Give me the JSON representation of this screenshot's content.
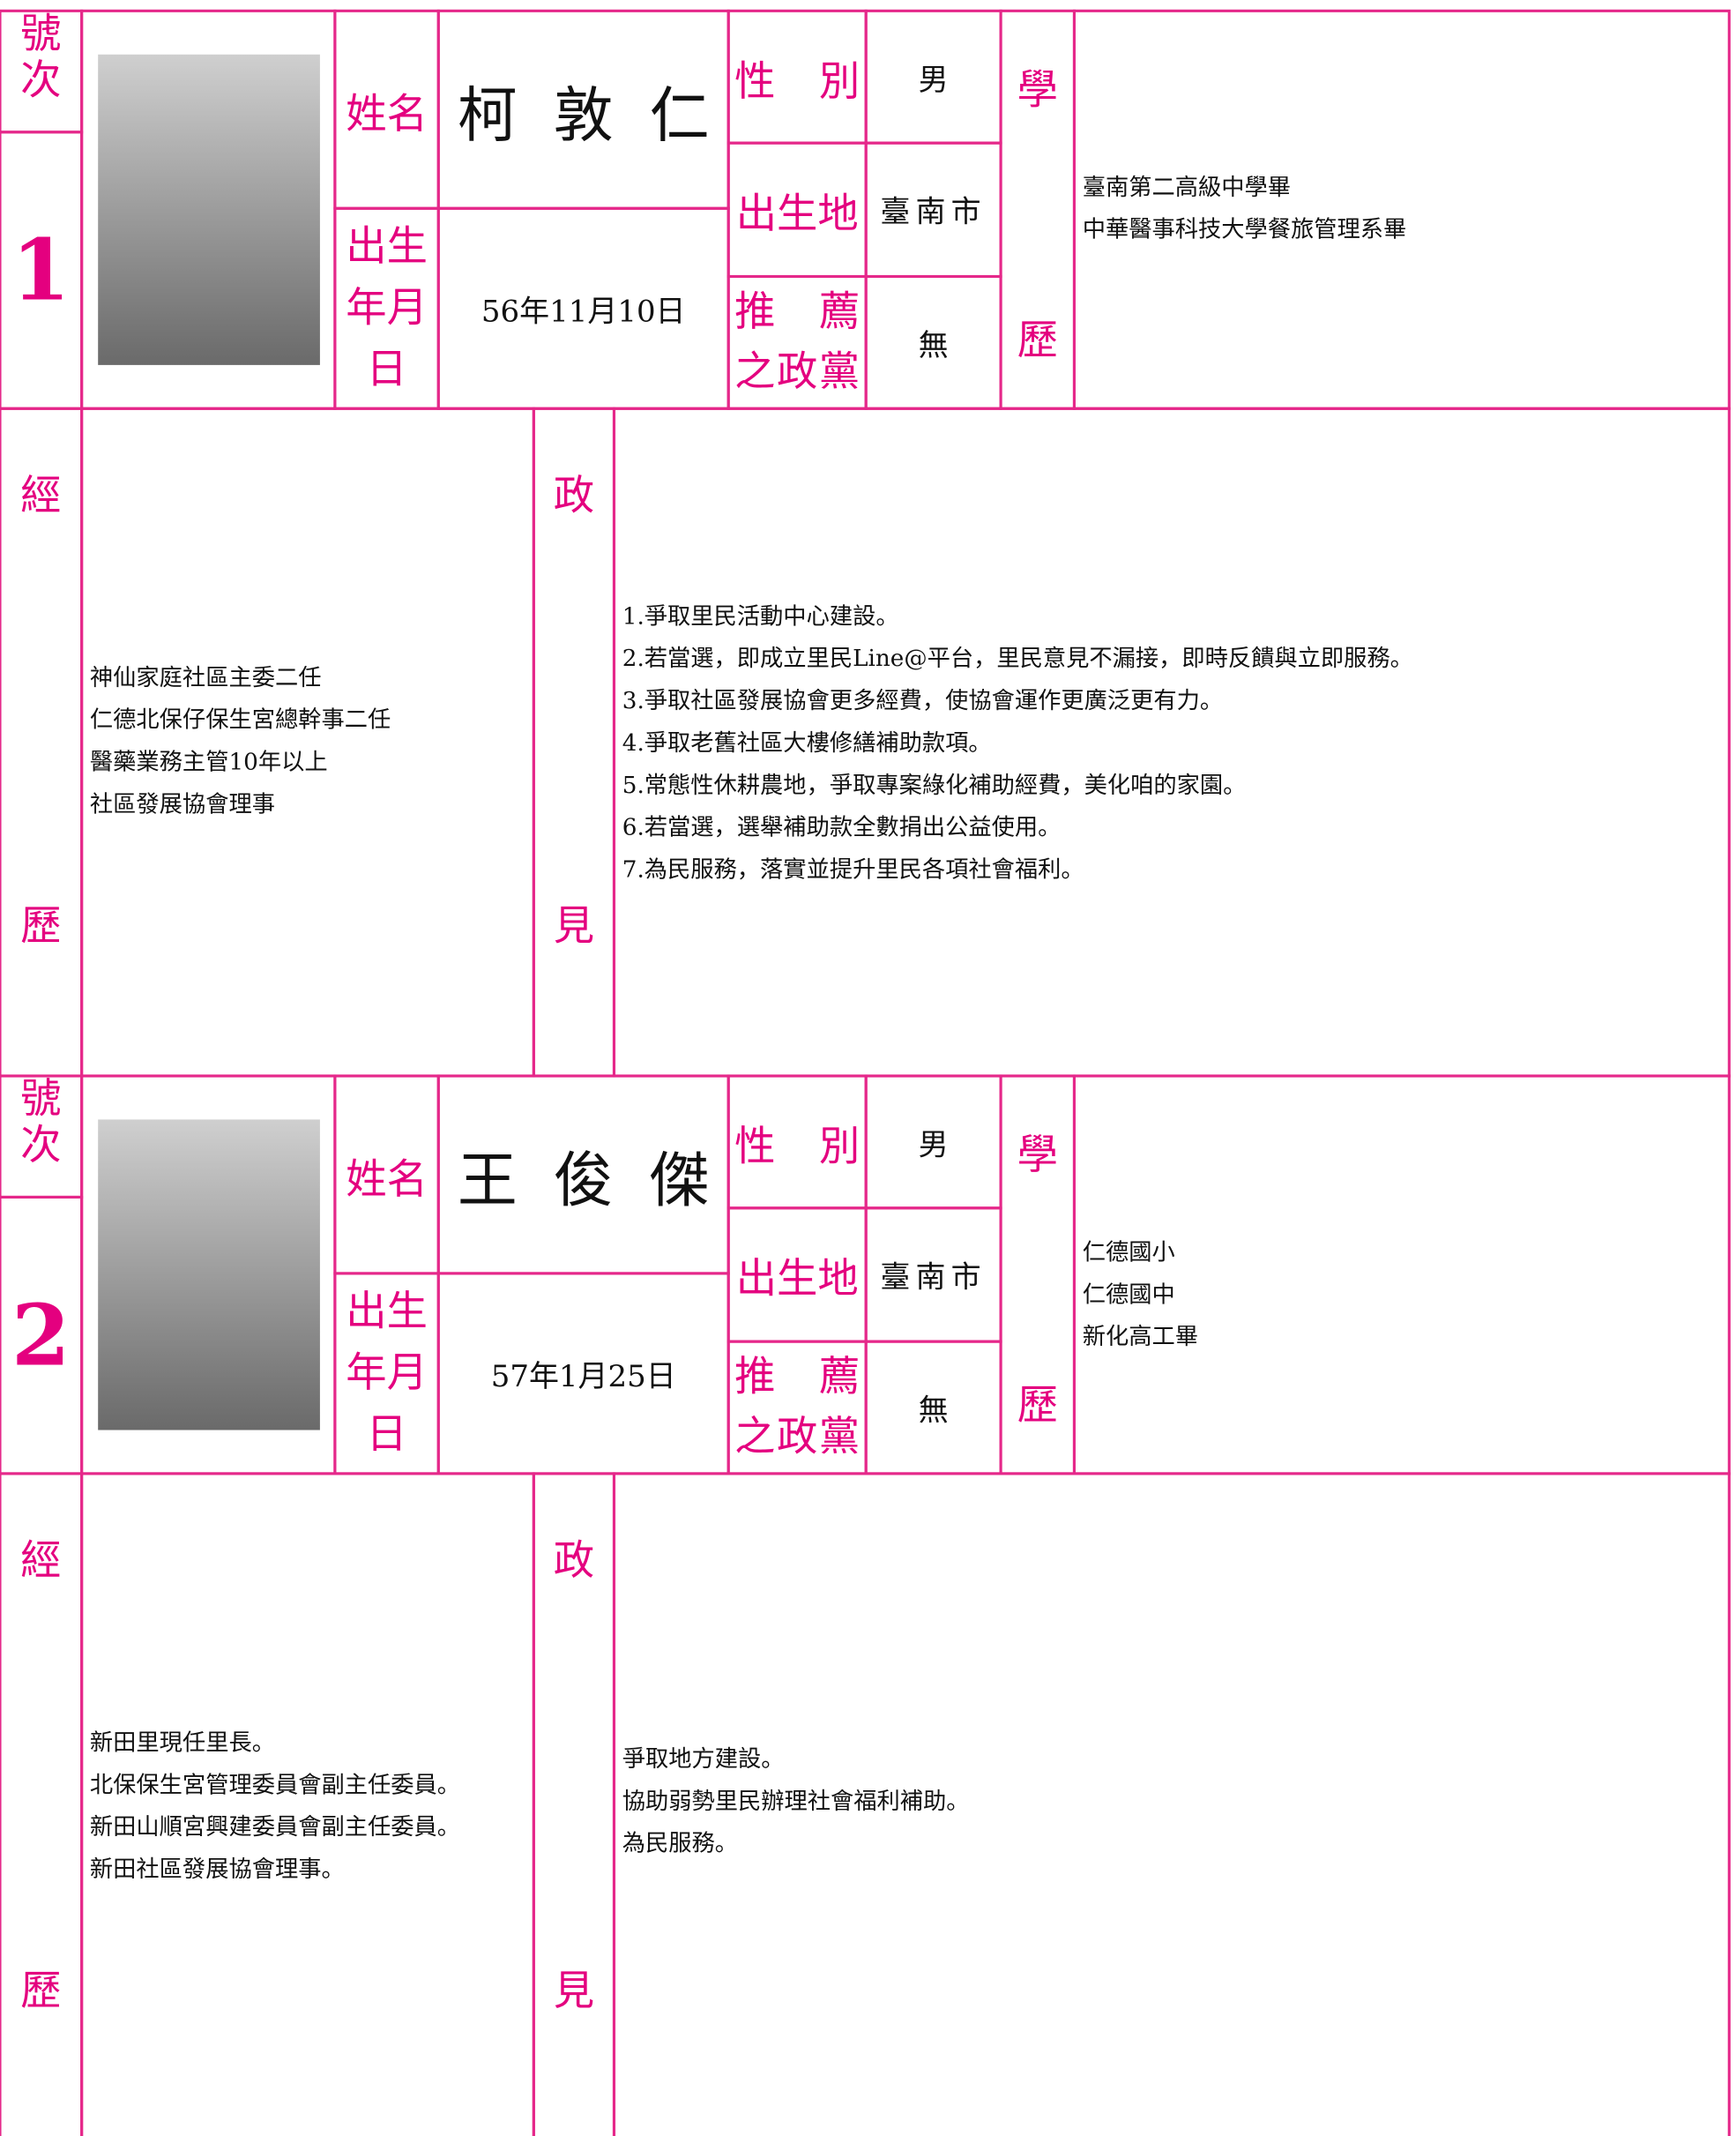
{
  "labels": {
    "number": [
      "號",
      "次"
    ],
    "name": "姓名",
    "gender": "性別",
    "birthplace": "出生地",
    "birthdate": "出生年月日",
    "party": [
      "推薦",
      "之政黨"
    ],
    "education": [
      "學",
      "歷"
    ],
    "experience": [
      "經",
      "歷"
    ],
    "platform": [
      "政",
      "見"
    ]
  },
  "candidates": [
    {
      "number": "1",
      "name": "柯敦仁",
      "gender": "男",
      "birthplace": "臺南市",
      "birthdate": "56年11月10日",
      "party": "無",
      "education": [
        "臺南第二高級中學畢",
        "中華醫事科技大學餐旅管理系畢"
      ],
      "experience": [
        "神仙家庭社區主委二任",
        "仁德北保仔保生宮總幹事二任",
        "醫藥業務主管10年以上",
        "社區發展協會理事"
      ],
      "platform": [
        "1.爭取里民活動中心建設。",
        "2.若當選，即成立里民Line@平台，里民意見不漏接，即時反饋與立即服務。",
        "3.爭取社區發展協會更多經費，使協會運作更廣泛更有力。",
        "4.爭取老舊社區大樓修繕補助款項。",
        "5.常態性休耕農地，爭取專案綠化補助經費，美化咱的家園。",
        "6.若當選，選舉補助款全數捐出公益使用。",
        "7.為民服務，落實並提升里民各項社會福利。"
      ]
    },
    {
      "number": "2",
      "name": "王俊傑",
      "gender": "男",
      "birthplace": "臺南市",
      "birthdate": "57年1月25日",
      "party": "無",
      "education": [
        "仁德國小",
        "仁德國中",
        "新化高工畢"
      ],
      "experience": [
        "新田里現任里長。",
        "北保保生宮管理委員會副主任委員。",
        "新田山順宮興建委員會副主任委員。",
        "新田社區發展協會理事。"
      ],
      "platform": [
        "爭取地方建設。",
        "協助弱勢里民辦理社會福利補助。",
        "為民服務。"
      ]
    }
  ]
}
